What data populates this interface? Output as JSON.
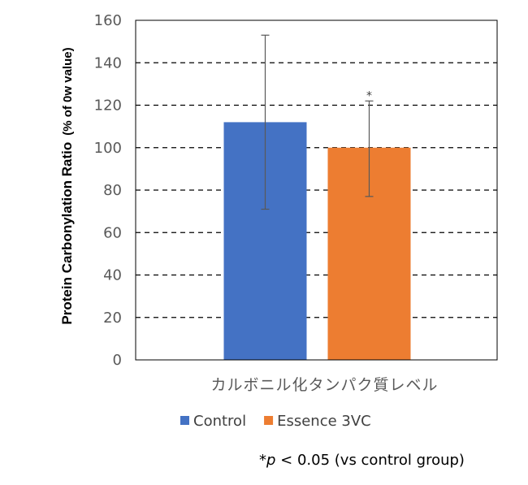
{
  "chart_data": {
    "type": "bar",
    "title": "",
    "xlabel": "カルボニル化タンパク質レベル",
    "ylabel": "Protein Carbonylation Ratio",
    "ylabel_unit": "(% of 0w value)",
    "ylim": [
      0,
      160
    ],
    "yticks": [
      0,
      20,
      40,
      60,
      80,
      100,
      120,
      140,
      160
    ],
    "grid": "dashed-horizontal",
    "legend_position": "bottom",
    "categories": [
      "カルボニル化タンパク質レベル"
    ],
    "series": [
      {
        "name": "Control",
        "color": "#4472C4",
        "values": [
          112
        ],
        "error_low": [
          71
        ],
        "error_high": [
          153
        ]
      },
      {
        "name": "Essence 3VC",
        "color": "#ED7D31",
        "values": [
          100
        ],
        "error_low": [
          77
        ],
        "error_high": [
          122
        ]
      }
    ],
    "annotations": [
      {
        "series": "Essence 3VC",
        "text": "*"
      }
    ]
  },
  "footnote": {
    "prefix": "*",
    "p": "p",
    "rest": " < 0.05 (vs control group)"
  }
}
